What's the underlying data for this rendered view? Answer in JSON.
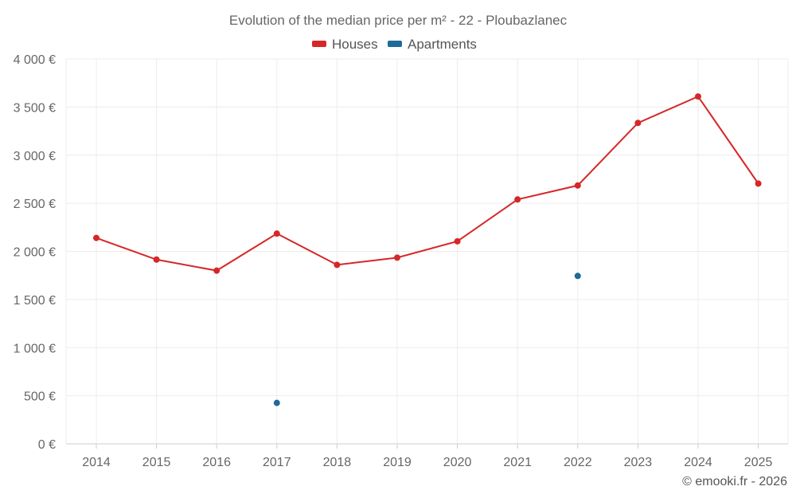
{
  "chart_data": {
    "type": "line",
    "title": "Evolution of the median price per m² - 22 - Ploubazlanec",
    "categories": [
      "2014",
      "2015",
      "2016",
      "2017",
      "2018",
      "2019",
      "2020",
      "2021",
      "2022",
      "2023",
      "2024",
      "2025"
    ],
    "ylim": [
      0,
      4000
    ],
    "yticks": [
      0,
      500,
      1000,
      1500,
      2000,
      2500,
      3000,
      3500,
      4000
    ],
    "ytick_labels": [
      "0 €",
      "500 €",
      "1 000 €",
      "1 500 €",
      "2 000 €",
      "2 500 €",
      "3 000 €",
      "3 500 €",
      "4 000 €"
    ],
    "xlabel": "",
    "ylabel": "",
    "grid": true,
    "legend_position": "top-center",
    "series": [
      {
        "name": "Houses",
        "color": "#d62728",
        "values": [
          2140,
          1915,
          1800,
          2185,
          1860,
          1935,
          2105,
          2540,
          2685,
          3335,
          3610,
          2705
        ]
      },
      {
        "name": "Apartments",
        "color": "#1f6a9a",
        "values": [
          null,
          null,
          null,
          425,
          null,
          null,
          null,
          null,
          1745,
          null,
          null,
          null
        ]
      }
    ],
    "credit": "© emooki.fr - 2026"
  }
}
